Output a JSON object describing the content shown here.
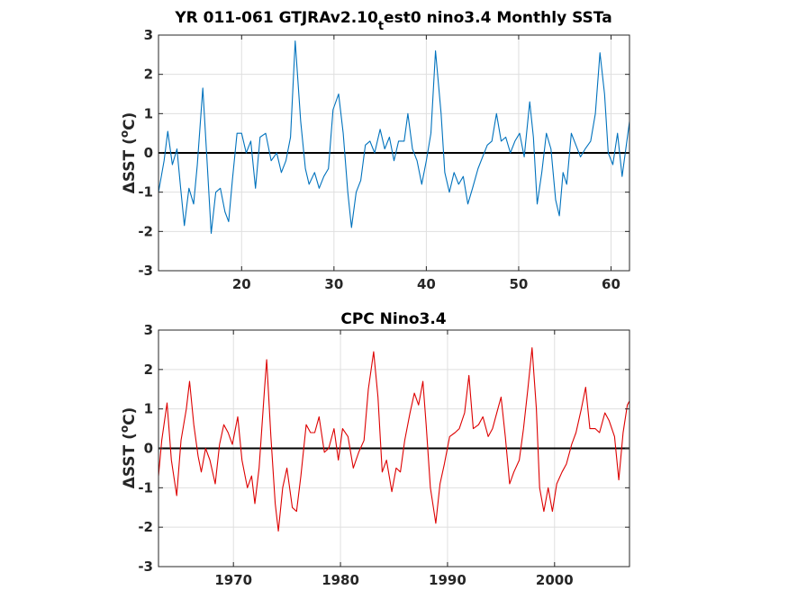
{
  "chart_data": [
    {
      "type": "line",
      "title_main": "YR 011-061 GTJRAv2.10",
      "title_sub": "t",
      "title_rest": "est0 nino3.4 Monthly SSTa",
      "ylabel_main": "ΔSST (",
      "ylabel_sup": "o",
      "ylabel_end": "C)",
      "xlim": [
        11,
        62
      ],
      "ylim": [
        -3,
        3
      ],
      "xticks": [
        20,
        30,
        40,
        50,
        60
      ],
      "xtick_labels": [
        "20",
        "30",
        "40",
        "50",
        "60"
      ],
      "yticks": [
        -3,
        -2,
        -1,
        0,
        1,
        2,
        3
      ],
      "ytick_labels": [
        "-3",
        "-2",
        "-1",
        "0",
        "1",
        "2",
        "3"
      ],
      "grid": true,
      "zero_line": true,
      "series": [
        {
          "color": "#0072bd",
          "points": [
            [
              11.0,
              -1.0
            ],
            [
              11.6,
              -0.2
            ],
            [
              12.0,
              0.55
            ],
            [
              12.5,
              -0.3
            ],
            [
              13.0,
              0.1
            ],
            [
              13.4,
              -0.9
            ],
            [
              13.8,
              -1.85
            ],
            [
              14.3,
              -0.9
            ],
            [
              14.8,
              -1.3
            ],
            [
              15.2,
              -0.3
            ],
            [
              15.8,
              1.65
            ],
            [
              16.3,
              -0.4
            ],
            [
              16.7,
              -2.05
            ],
            [
              17.2,
              -1.0
            ],
            [
              17.7,
              -0.9
            ],
            [
              18.2,
              -1.5
            ],
            [
              18.6,
              -1.75
            ],
            [
              19.0,
              -0.7
            ],
            [
              19.5,
              0.5
            ],
            [
              20.0,
              0.5
            ],
            [
              20.5,
              0.0
            ],
            [
              21.0,
              0.3
            ],
            [
              21.5,
              -0.9
            ],
            [
              22.0,
              0.4
            ],
            [
              22.6,
              0.5
            ],
            [
              23.2,
              -0.2
            ],
            [
              23.8,
              0.0
            ],
            [
              24.3,
              -0.5
            ],
            [
              24.8,
              -0.2
            ],
            [
              25.3,
              0.4
            ],
            [
              25.8,
              2.85
            ],
            [
              26.4,
              0.8
            ],
            [
              26.9,
              -0.4
            ],
            [
              27.3,
              -0.8
            ],
            [
              27.9,
              -0.5
            ],
            [
              28.4,
              -0.9
            ],
            [
              28.9,
              -0.6
            ],
            [
              29.4,
              -0.4
            ],
            [
              29.9,
              1.1
            ],
            [
              30.5,
              1.5
            ],
            [
              31.0,
              0.5
            ],
            [
              31.5,
              -1.0
            ],
            [
              31.9,
              -1.9
            ],
            [
              32.4,
              -1.0
            ],
            [
              32.9,
              -0.7
            ],
            [
              33.4,
              0.2
            ],
            [
              33.9,
              0.3
            ],
            [
              34.4,
              0.0
            ],
            [
              35.0,
              0.6
            ],
            [
              35.5,
              0.1
            ],
            [
              36.0,
              0.4
            ],
            [
              36.5,
              -0.2
            ],
            [
              37.0,
              0.3
            ],
            [
              37.6,
              0.3
            ],
            [
              38.0,
              1.0
            ],
            [
              38.5,
              0.1
            ],
            [
              39.0,
              -0.2
            ],
            [
              39.5,
              -0.8
            ],
            [
              40.0,
              -0.2
            ],
            [
              40.5,
              0.5
            ],
            [
              41.0,
              2.6
            ],
            [
              41.6,
              1.0
            ],
            [
              42.0,
              -0.5
            ],
            [
              42.5,
              -1.0
            ],
            [
              43.0,
              -0.5
            ],
            [
              43.5,
              -0.8
            ],
            [
              44.0,
              -0.6
            ],
            [
              44.5,
              -1.3
            ],
            [
              45.0,
              -0.9
            ],
            [
              45.6,
              -0.4
            ],
            [
              46.1,
              -0.1
            ],
            [
              46.6,
              0.2
            ],
            [
              47.1,
              0.3
            ],
            [
              47.6,
              1.0
            ],
            [
              48.1,
              0.3
            ],
            [
              48.6,
              0.4
            ],
            [
              49.1,
              0.0
            ],
            [
              49.6,
              0.3
            ],
            [
              50.1,
              0.5
            ],
            [
              50.6,
              -0.1
            ],
            [
              51.2,
              1.3
            ],
            [
              51.6,
              0.4
            ],
            [
              52.0,
              -1.3
            ],
            [
              52.5,
              -0.5
            ],
            [
              53.0,
              0.5
            ],
            [
              53.5,
              0.1
            ],
            [
              54.0,
              -1.2
            ],
            [
              54.4,
              -1.6
            ],
            [
              54.8,
              -0.5
            ],
            [
              55.2,
              -0.8
            ],
            [
              55.7,
              0.5
            ],
            [
              56.2,
              0.2
            ],
            [
              56.7,
              -0.1
            ],
            [
              57.2,
              0.1
            ],
            [
              57.8,
              0.3
            ],
            [
              58.3,
              1.0
            ],
            [
              58.8,
              2.55
            ],
            [
              59.3,
              1.5
            ],
            [
              59.7,
              0.0
            ],
            [
              60.2,
              -0.3
            ],
            [
              60.7,
              0.5
            ],
            [
              61.2,
              -0.6
            ],
            [
              62.0,
              0.8
            ]
          ]
        }
      ]
    },
    {
      "type": "line",
      "title": "CPC Nino3.4",
      "ylabel_main": "ΔSST (",
      "ylabel_sup": "o",
      "ylabel_end": "C)",
      "xlim": [
        1963,
        2007
      ],
      "ylim": [
        -3,
        3
      ],
      "xticks": [
        1970,
        1980,
        1990,
        2000
      ],
      "xtick_labels": [
        "1970",
        "1980",
        "1990",
        "2000"
      ],
      "yticks": [
        -3,
        -2,
        -1,
        0,
        1,
        2,
        3
      ],
      "ytick_labels": [
        "-3",
        "-2",
        "-1",
        "0",
        "1",
        "2",
        "3"
      ],
      "grid": true,
      "zero_line": true,
      "series": [
        {
          "color": "#dd0000",
          "points": [
            [
              1963.0,
              -0.7
            ],
            [
              1963.3,
              0.2
            ],
            [
              1963.8,
              1.15
            ],
            [
              1964.2,
              -0.3
            ],
            [
              1964.7,
              -1.2
            ],
            [
              1965.1,
              0.2
            ],
            [
              1965.6,
              1.0
            ],
            [
              1965.9,
              1.7
            ],
            [
              1966.3,
              0.6
            ],
            [
              1966.7,
              -0.2
            ],
            [
              1967.0,
              -0.6
            ],
            [
              1967.4,
              0.0
            ],
            [
              1967.8,
              -0.3
            ],
            [
              1968.3,
              -0.9
            ],
            [
              1968.7,
              0.1
            ],
            [
              1969.1,
              0.6
            ],
            [
              1969.5,
              0.4
            ],
            [
              1969.9,
              0.1
            ],
            [
              1970.4,
              0.8
            ],
            [
              1970.8,
              -0.3
            ],
            [
              1971.3,
              -1.0
            ],
            [
              1971.7,
              -0.7
            ],
            [
              1972.0,
              -1.4
            ],
            [
              1972.4,
              -0.5
            ],
            [
              1972.9,
              1.5
            ],
            [
              1973.1,
              2.25
            ],
            [
              1973.5,
              0.3
            ],
            [
              1973.9,
              -1.4
            ],
            [
              1974.2,
              -2.1
            ],
            [
              1974.6,
              -1.0
            ],
            [
              1975.0,
              -0.5
            ],
            [
              1975.5,
              -1.5
            ],
            [
              1975.9,
              -1.6
            ],
            [
              1976.3,
              -0.7
            ],
            [
              1976.8,
              0.6
            ],
            [
              1977.2,
              0.4
            ],
            [
              1977.6,
              0.4
            ],
            [
              1978.0,
              0.8
            ],
            [
              1978.5,
              -0.1
            ],
            [
              1978.9,
              0.0
            ],
            [
              1979.4,
              0.5
            ],
            [
              1979.8,
              -0.3
            ],
            [
              1980.2,
              0.5
            ],
            [
              1980.7,
              0.3
            ],
            [
              1981.2,
              -0.5
            ],
            [
              1981.7,
              -0.1
            ],
            [
              1982.2,
              0.2
            ],
            [
              1982.6,
              1.5
            ],
            [
              1983.1,
              2.45
            ],
            [
              1983.5,
              1.3
            ],
            [
              1983.9,
              -0.6
            ],
            [
              1984.3,
              -0.3
            ],
            [
              1984.8,
              -1.1
            ],
            [
              1985.2,
              -0.5
            ],
            [
              1985.6,
              -0.6
            ],
            [
              1986.0,
              0.2
            ],
            [
              1986.5,
              0.9
            ],
            [
              1986.9,
              1.4
            ],
            [
              1987.3,
              1.1
            ],
            [
              1987.7,
              1.7
            ],
            [
              1988.0,
              0.6
            ],
            [
              1988.4,
              -1.0
            ],
            [
              1988.9,
              -1.9
            ],
            [
              1989.3,
              -0.9
            ],
            [
              1989.7,
              -0.4
            ],
            [
              1990.2,
              0.3
            ],
            [
              1990.7,
              0.4
            ],
            [
              1991.1,
              0.5
            ],
            [
              1991.6,
              0.9
            ],
            [
              1992.0,
              1.85
            ],
            [
              1992.4,
              0.5
            ],
            [
              1992.9,
              0.6
            ],
            [
              1993.3,
              0.8
            ],
            [
              1993.8,
              0.3
            ],
            [
              1994.2,
              0.5
            ],
            [
              1994.7,
              1.0
            ],
            [
              1995.0,
              1.3
            ],
            [
              1995.4,
              0.3
            ],
            [
              1995.8,
              -0.9
            ],
            [
              1996.2,
              -0.6
            ],
            [
              1996.7,
              -0.3
            ],
            [
              1997.1,
              0.5
            ],
            [
              1997.5,
              1.5
            ],
            [
              1997.9,
              2.55
            ],
            [
              1998.3,
              1.0
            ],
            [
              1998.6,
              -1.0
            ],
            [
              1999.0,
              -1.6
            ],
            [
              1999.4,
              -1.0
            ],
            [
              1999.8,
              -1.6
            ],
            [
              2000.2,
              -0.9
            ],
            [
              2000.7,
              -0.6
            ],
            [
              2001.1,
              -0.4
            ],
            [
              2001.6,
              0.1
            ],
            [
              2002.0,
              0.4
            ],
            [
              2002.5,
              1.0
            ],
            [
              2002.9,
              1.55
            ],
            [
              2003.3,
              0.5
            ],
            [
              2003.8,
              0.5
            ],
            [
              2004.2,
              0.4
            ],
            [
              2004.7,
              0.9
            ],
            [
              2005.1,
              0.7
            ],
            [
              2005.6,
              0.3
            ],
            [
              2006.0,
              -0.8
            ],
            [
              2006.4,
              0.4
            ],
            [
              2006.8,
              1.1
            ],
            [
              2007.0,
              1.2
            ]
          ]
        }
      ]
    }
  ]
}
